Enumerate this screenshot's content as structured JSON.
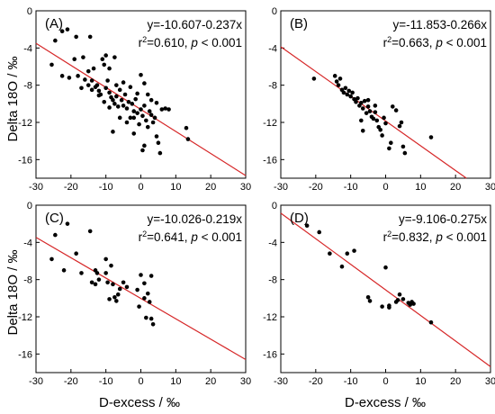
{
  "figure": {
    "xlabel": "D-excess / ‰",
    "ylabel": "Delta 18O / ‰"
  },
  "chart_data": [
    {
      "type": "scatter",
      "panel": "(A)",
      "eq_text": "y=-10.607-0.237x",
      "r2_prefix": "r",
      "r2_value": "=0.610, ",
      "p_symbol": "p",
      "p_value": " < 0.001",
      "xlim": [
        -30,
        30
      ],
      "ylim": [
        -18,
        0
      ],
      "xticks": [
        -30,
        -20,
        -10,
        0,
        10,
        20,
        30
      ],
      "yticks": [
        0,
        -4,
        -8,
        -12,
        -16
      ],
      "regression": {
        "intercept": -10.607,
        "slope": -0.237
      },
      "color_line": "#d62728",
      "color_points": "#000000",
      "points": [
        [
          -25.5,
          -5.8
        ],
        [
          -24.5,
          -3.2
        ],
        [
          -22.5,
          -2.2
        ],
        [
          -21,
          -2
        ],
        [
          -18.5,
          -2.8
        ],
        [
          -14.5,
          -2.8
        ],
        [
          -20.5,
          -7.2
        ],
        [
          -19,
          -5.2
        ],
        [
          -18,
          -7.0
        ],
        [
          -16.5,
          -5.0
        ],
        [
          -15,
          -6.5
        ],
        [
          -14,
          -7.5
        ],
        [
          -13.5,
          -6.2
        ],
        [
          -12.5,
          -8.0
        ],
        [
          -11,
          -5.2
        ],
        [
          -10.5,
          -5.8
        ],
        [
          -10,
          -4.8
        ],
        [
          -9,
          -6.2
        ],
        [
          -7.5,
          -5.0
        ],
        [
          -22.5,
          -7.0
        ],
        [
          -16,
          -7.4
        ],
        [
          -14,
          -8.5
        ],
        [
          -13,
          -8.2
        ],
        [
          -12,
          -8.6
        ],
        [
          -11.5,
          -9.0
        ],
        [
          -10,
          -8.3
        ],
        [
          -9.5,
          -7.5
        ],
        [
          -9,
          -8.8
        ],
        [
          -8.5,
          -9.3
        ],
        [
          -8,
          -9.6
        ],
        [
          -7.5,
          -10.0
        ],
        [
          -7,
          -9.2
        ],
        [
          -6.5,
          -10.3
        ],
        [
          -6,
          -8.5
        ],
        [
          -5.5,
          -9.6
        ],
        [
          -5,
          -10.2
        ],
        [
          -4.5,
          -9.0
        ],
        [
          -4,
          -10.5
        ],
        [
          -3.5,
          -9.8
        ],
        [
          -3,
          -11.5
        ],
        [
          -2.5,
          -10.0
        ],
        [
          -2,
          -10.8
        ],
        [
          -1.5,
          -9.5
        ],
        [
          -1,
          -11.0
        ],
        [
          -0.5,
          -12.2
        ],
        [
          0,
          -10.6
        ],
        [
          0.5,
          -11.3
        ],
        [
          1,
          -10.2
        ],
        [
          1.5,
          -11.8
        ],
        [
          2,
          -12.5
        ],
        [
          2.5,
          -10.8
        ],
        [
          3,
          -11.2
        ],
        [
          3.5,
          -12.0
        ],
        [
          4,
          -11.5
        ],
        [
          4.5,
          -13.5
        ],
        [
          5,
          -14.2
        ],
        [
          5.5,
          -15.3
        ],
        [
          6,
          -10.6
        ],
        [
          7,
          -10.5
        ],
        [
          8,
          -10.6
        ],
        [
          0.5,
          -15.0
        ],
        [
          1,
          -14.5
        ],
        [
          -2,
          -13.2
        ],
        [
          -4,
          -12.0
        ],
        [
          -6,
          -11.5
        ],
        [
          -8,
          -13.0
        ],
        [
          13,
          -12.6
        ],
        [
          13.5,
          -13.8
        ],
        [
          -3,
          -8.2
        ],
        [
          -1,
          -8.9
        ],
        [
          1,
          -7.8
        ],
        [
          0,
          -6.9
        ],
        [
          -5,
          -7.7
        ],
        [
          -7,
          -8.0
        ],
        [
          2,
          -9.0
        ],
        [
          3,
          -9.6
        ],
        [
          -12,
          -9.1
        ],
        [
          -10.5,
          -9.8
        ],
        [
          -9,
          -10.4
        ],
        [
          -2,
          -11.5
        ],
        [
          4.5,
          -9.9
        ],
        [
          -15,
          -8.0
        ],
        [
          -17,
          -8.3
        ]
      ]
    },
    {
      "type": "scatter",
      "panel": "(B)",
      "eq_text": "y=-11.853-0.266x",
      "r2_prefix": "r",
      "r2_value": "=0.663, ",
      "p_symbol": "p",
      "p_value": " < 0.001",
      "xlim": [
        -30,
        30
      ],
      "ylim": [
        -18,
        0
      ],
      "xticks": [
        -30,
        -20,
        -10,
        0,
        10,
        20,
        30
      ],
      "yticks": [
        0,
        -4,
        -8,
        -12,
        -16
      ],
      "regression": {
        "intercept": -11.853,
        "slope": -0.266
      },
      "color_line": "#d62728",
      "color_points": "#000000",
      "points": [
        [
          -20.5,
          -7.3
        ],
        [
          -14.5,
          -7.0
        ],
        [
          -14,
          -7.6
        ],
        [
          -13.5,
          -8.0
        ],
        [
          -13,
          -7.3
        ],
        [
          -12.5,
          -8.5
        ],
        [
          -12,
          -8.8
        ],
        [
          -11.5,
          -8.3
        ],
        [
          -11,
          -9.0
        ],
        [
          -10.5,
          -8.6
        ],
        [
          -10,
          -9.2
        ],
        [
          -9.5,
          -8.8
        ],
        [
          -9,
          -9.5
        ],
        [
          -8.5,
          -9.8
        ],
        [
          -8,
          -9.4
        ],
        [
          -7.5,
          -10.2
        ],
        [
          -7,
          -9.9
        ],
        [
          -6.5,
          -10.5
        ],
        [
          -6,
          -9.7
        ],
        [
          -5.5,
          -11.0
        ],
        [
          -5,
          -10.3
        ],
        [
          -4.5,
          -10.8
        ],
        [
          -4,
          -11.4
        ],
        [
          -3.5,
          -11.6
        ],
        [
          -3,
          -10.9
        ],
        [
          -2.5,
          -11.8
        ],
        [
          -2,
          -12.5
        ],
        [
          -1.5,
          -12.8
        ],
        [
          -1,
          -13.4
        ],
        [
          -0.5,
          -11.5
        ],
        [
          0,
          -12.1
        ],
        [
          1,
          -14.8
        ],
        [
          1.5,
          -14.2
        ],
        [
          2,
          -10.3
        ],
        [
          3,
          -10.7
        ],
        [
          4,
          -12.4
        ],
        [
          4.5,
          -12.0
        ],
        [
          5,
          -14.6
        ],
        [
          5.5,
          -15.3
        ],
        [
          13,
          -13.6
        ],
        [
          -6.5,
          -12.9
        ],
        [
          -5,
          -9.6
        ],
        [
          -3,
          -10.2
        ],
        [
          -7,
          -11.8
        ]
      ]
    },
    {
      "type": "scatter",
      "panel": "(C)",
      "eq_text": "y=-10.026-0.219x",
      "r2_prefix": "r",
      "r2_value": "=0.641, ",
      "p_symbol": "p",
      "p_value": " < 0.001",
      "xlim": [
        -30,
        30
      ],
      "ylim": [
        -18,
        0
      ],
      "xticks": [
        -30,
        -20,
        -10,
        0,
        10,
        20,
        30
      ],
      "yticks": [
        0,
        -4,
        -8,
        -12,
        -16
      ],
      "regression": {
        "intercept": -10.026,
        "slope": -0.219
      },
      "color_line": "#d62728",
      "color_points": "#000000",
      "points": [
        [
          -25.5,
          -5.8
        ],
        [
          -24.5,
          -3.2
        ],
        [
          -21,
          -2.0
        ],
        [
          -14.5,
          -2.8
        ],
        [
          -22,
          -7.0
        ],
        [
          -18.5,
          -5.2
        ],
        [
          -17,
          -7.3
        ],
        [
          -14,
          -8.3
        ],
        [
          -13,
          -7.0
        ],
        [
          -12.5,
          -7.3
        ],
        [
          -12,
          -8.0
        ],
        [
          -10,
          -5.8
        ],
        [
          -10,
          -7.3
        ],
        [
          -9.5,
          -8.3
        ],
        [
          -8.5,
          -6.5
        ],
        [
          -8,
          -8.5
        ],
        [
          -7.5,
          -9.9
        ],
        [
          -7,
          -10.3
        ],
        [
          -6.5,
          -9.6
        ],
        [
          -6,
          -9.0
        ],
        [
          -5,
          -8.3
        ],
        [
          -4,
          -8.8
        ],
        [
          -1,
          -9.1
        ],
        [
          -0.5,
          -10.9
        ],
        [
          0,
          -7.5
        ],
        [
          1,
          -10.0
        ],
        [
          1.5,
          -12.1
        ],
        [
          2,
          -9.5
        ],
        [
          2.5,
          -10.4
        ],
        [
          3,
          -7.6
        ],
        [
          3,
          -12.2
        ],
        [
          3.5,
          -12.8
        ],
        [
          -13,
          -8.5
        ],
        [
          -9,
          -10.1
        ],
        [
          1,
          -8.4
        ]
      ]
    },
    {
      "type": "scatter",
      "panel": "(D)",
      "eq_text": "y=-9.106-0.275x",
      "r2_prefix": "r",
      "r2_value": "=0.832, ",
      "p_symbol": "p",
      "p_value": " < 0.001",
      "xlim": [
        -30,
        30
      ],
      "ylim": [
        -18,
        0
      ],
      "xticks": [
        -30,
        -20,
        -10,
        0,
        10,
        20,
        30
      ],
      "yticks": [
        0,
        -4,
        -8,
        -12,
        -16
      ],
      "regression": {
        "intercept": -9.106,
        "slope": -0.275
      },
      "color_line": "#d62728",
      "color_points": "#000000",
      "points": [
        [
          -22.5,
          -2.2
        ],
        [
          -19,
          -2.9
        ],
        [
          -16,
          -5.2
        ],
        [
          -11,
          -5.2
        ],
        [
          -9,
          -4.9
        ],
        [
          -12.5,
          -6.6
        ],
        [
          -5,
          -9.9
        ],
        [
          -4.5,
          -10.3
        ],
        [
          -1,
          -10.9
        ],
        [
          0,
          -6.7
        ],
        [
          1,
          -11.0
        ],
        [
          1,
          -10.8
        ],
        [
          3,
          -10.4
        ],
        [
          3.5,
          -10.2
        ],
        [
          4,
          -9.6
        ],
        [
          5,
          -10.1
        ],
        [
          6.5,
          -10.5
        ],
        [
          7,
          -10.7
        ],
        [
          7.5,
          -10.4
        ],
        [
          8,
          -10.6
        ],
        [
          13,
          -12.6
        ]
      ]
    }
  ]
}
